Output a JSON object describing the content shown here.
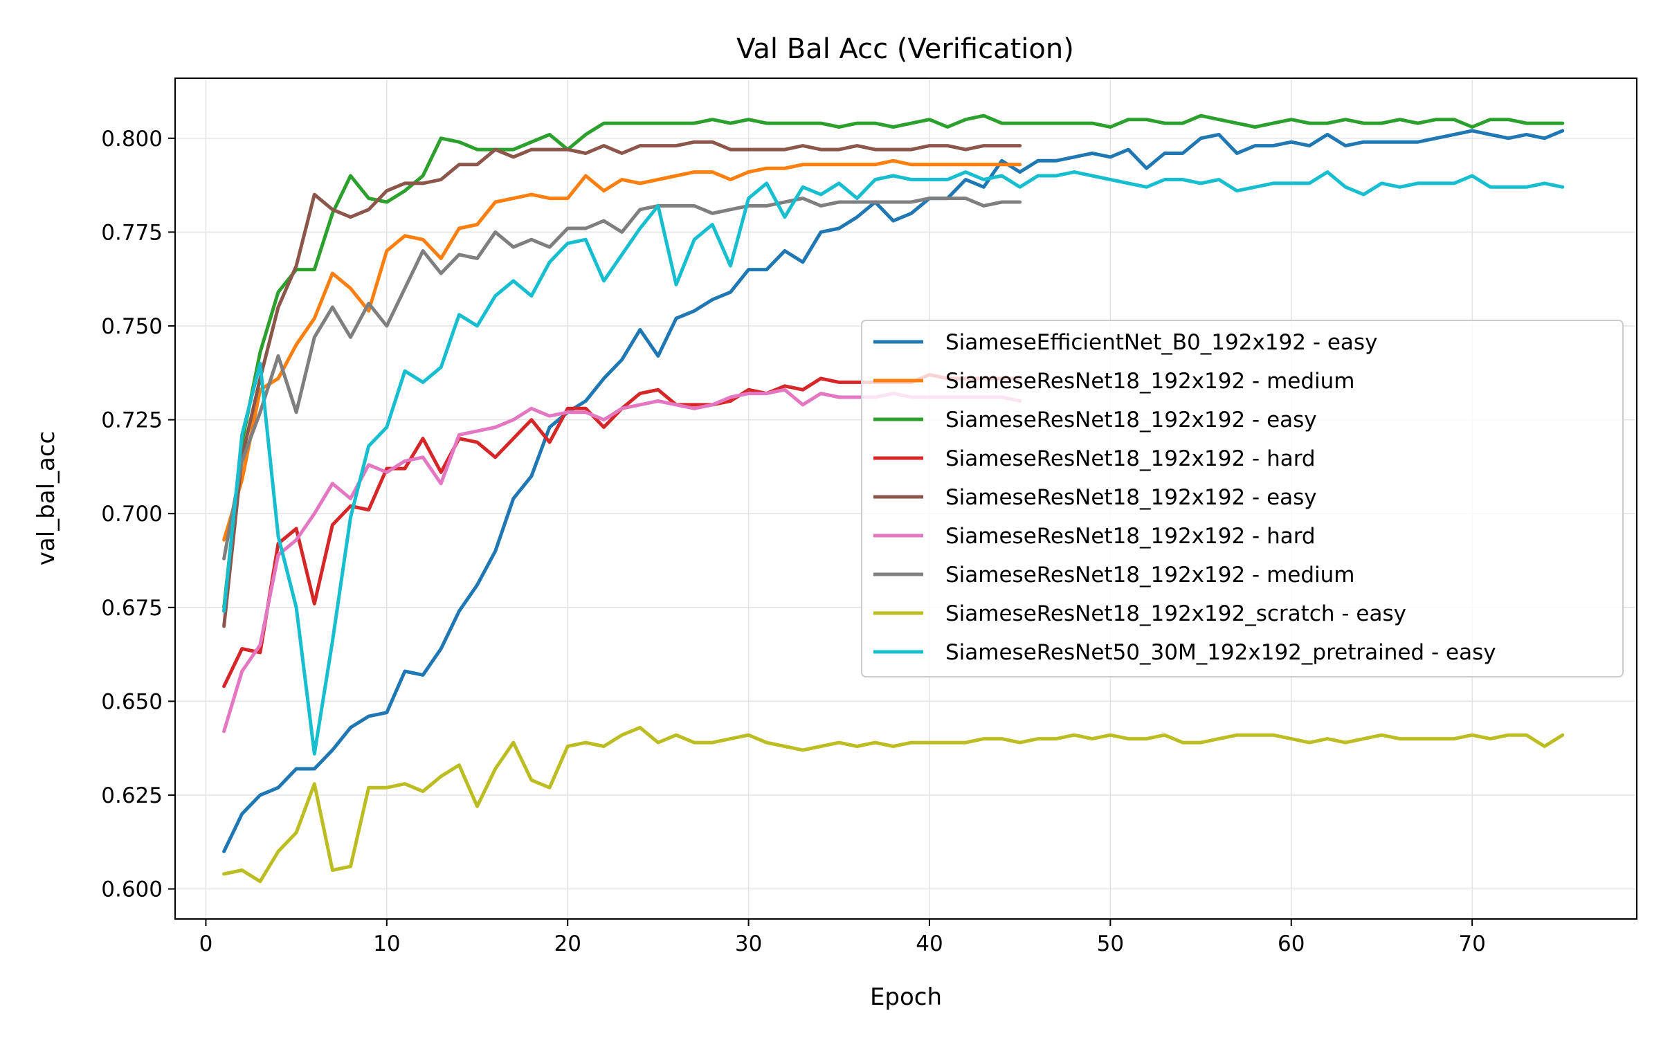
{
  "chart_data": {
    "type": "line",
    "title": "Val Bal Acc (Verification)",
    "xlabel": "Epoch",
    "ylabel": "val_bal_acc",
    "xlim": [
      -1.7,
      79.1
    ],
    "ylim": [
      0.592,
      0.816
    ],
    "xticks": [
      0,
      10,
      20,
      30,
      40,
      50,
      60,
      70
    ],
    "yticks": [
      0.6,
      0.625,
      0.65,
      0.675,
      0.7,
      0.725,
      0.75,
      0.775,
      0.8
    ],
    "ytick_labels": [
      "0.600",
      "0.625",
      "0.650",
      "0.675",
      "0.700",
      "0.725",
      "0.750",
      "0.775",
      "0.800"
    ],
    "grid": true,
    "legend_position": "center-right",
    "series": [
      {
        "name": "SiameseEfficientNet_B0_192x192 - easy",
        "color": "#1f77b4",
        "x_start": 1,
        "values": [
          0.61,
          0.62,
          0.625,
          0.627,
          0.632,
          0.632,
          0.637,
          0.643,
          0.646,
          0.647,
          0.658,
          0.657,
          0.664,
          0.674,
          0.681,
          0.69,
          0.704,
          0.71,
          0.723,
          0.727,
          0.73,
          0.736,
          0.741,
          0.749,
          0.742,
          0.752,
          0.754,
          0.757,
          0.759,
          0.765,
          0.765,
          0.77,
          0.767,
          0.775,
          0.776,
          0.779,
          0.783,
          0.778,
          0.78,
          0.784,
          0.784,
          0.789,
          0.787,
          0.794,
          0.791,
          0.794,
          0.794,
          0.795,
          0.796,
          0.795,
          0.797,
          0.792,
          0.796,
          0.796,
          0.8,
          0.801,
          0.796,
          0.798,
          0.798,
          0.799,
          0.798,
          0.801,
          0.798,
          0.799,
          0.799,
          0.799,
          0.799,
          0.8,
          0.801,
          0.802,
          0.801,
          0.8,
          0.801,
          0.8,
          0.802
        ]
      },
      {
        "name": "SiameseResNet18_192x192 - medium",
        "color": "#ff7f0e",
        "x_start": 1,
        "values": [
          0.693,
          0.709,
          0.733,
          0.736,
          0.745,
          0.752,
          0.764,
          0.76,
          0.754,
          0.77,
          0.774,
          0.773,
          0.768,
          0.776,
          0.777,
          0.783,
          0.784,
          0.785,
          0.784,
          0.784,
          0.79,
          0.786,
          0.789,
          0.788,
          0.789,
          0.79,
          0.791,
          0.791,
          0.789,
          0.791,
          0.792,
          0.792,
          0.793,
          0.793,
          0.793,
          0.793,
          0.793,
          0.794,
          0.793,
          0.793,
          0.793,
          0.793,
          0.793,
          0.793,
          0.793
        ]
      },
      {
        "name": "SiameseResNet18_192x192 - easy",
        "color": "#2ca02c",
        "x_start": 1,
        "values": [
          0.675,
          0.719,
          0.743,
          0.759,
          0.765,
          0.765,
          0.78,
          0.79,
          0.784,
          0.783,
          0.786,
          0.79,
          0.8,
          0.799,
          0.797,
          0.797,
          0.797,
          0.799,
          0.801,
          0.797,
          0.801,
          0.804,
          0.804,
          0.804,
          0.804,
          0.804,
          0.804,
          0.805,
          0.804,
          0.805,
          0.804,
          0.804,
          0.804,
          0.804,
          0.803,
          0.804,
          0.804,
          0.803,
          0.804,
          0.805,
          0.803,
          0.805,
          0.806,
          0.804,
          0.804,
          0.804,
          0.804,
          0.804,
          0.804,
          0.803,
          0.805,
          0.805,
          0.804,
          0.804,
          0.806,
          0.805,
          0.804,
          0.803,
          0.804,
          0.805,
          0.804,
          0.804,
          0.805,
          0.804,
          0.804,
          0.805,
          0.804,
          0.805,
          0.805,
          0.803,
          0.805,
          0.805,
          0.804,
          0.804,
          0.804
        ]
      },
      {
        "name": "SiameseResNet18_192x192 - hard",
        "color": "#d62728",
        "x_start": 1,
        "values": [
          0.654,
          0.664,
          0.663,
          0.692,
          0.696,
          0.676,
          0.697,
          0.702,
          0.701,
          0.712,
          0.712,
          0.72,
          0.711,
          0.72,
          0.719,
          0.715,
          0.72,
          0.725,
          0.719,
          0.728,
          0.728,
          0.723,
          0.728,
          0.732,
          0.733,
          0.729,
          0.729,
          0.729,
          0.73,
          0.733,
          0.732,
          0.734,
          0.733,
          0.736,
          0.735,
          0.735,
          0.735,
          0.735,
          0.735,
          0.737,
          0.736,
          0.736,
          0.736,
          0.736,
          0.736
        ]
      },
      {
        "name": "SiameseResNet18_192x192 - easy",
        "color": "#8c564b",
        "x_start": 1,
        "values": [
          0.67,
          0.715,
          0.736,
          0.755,
          0.766,
          0.785,
          0.781,
          0.779,
          0.781,
          0.786,
          0.788,
          0.788,
          0.789,
          0.793,
          0.793,
          0.797,
          0.795,
          0.797,
          0.797,
          0.797,
          0.796,
          0.798,
          0.796,
          0.798,
          0.798,
          0.798,
          0.799,
          0.799,
          0.797,
          0.797,
          0.797,
          0.797,
          0.798,
          0.797,
          0.797,
          0.798,
          0.797,
          0.797,
          0.797,
          0.798,
          0.798,
          0.797,
          0.798,
          0.798,
          0.798
        ]
      },
      {
        "name": "SiameseResNet18_192x192 - hard",
        "color": "#e377c2",
        "x_start": 1,
        "values": [
          0.642,
          0.658,
          0.665,
          0.689,
          0.693,
          0.7,
          0.708,
          0.704,
          0.713,
          0.711,
          0.714,
          0.715,
          0.708,
          0.721,
          0.722,
          0.723,
          0.725,
          0.728,
          0.726,
          0.727,
          0.727,
          0.725,
          0.728,
          0.729,
          0.73,
          0.729,
          0.728,
          0.729,
          0.731,
          0.732,
          0.732,
          0.733,
          0.729,
          0.732,
          0.731,
          0.731,
          0.731,
          0.732,
          0.731,
          0.731,
          0.731,
          0.731,
          0.731,
          0.731,
          0.73
        ]
      },
      {
        "name": "SiameseResNet18_192x192 - medium",
        "color": "#7f7f7f",
        "x_start": 1,
        "values": [
          0.688,
          0.714,
          0.727,
          0.742,
          0.727,
          0.747,
          0.755,
          0.747,
          0.756,
          0.75,
          0.76,
          0.77,
          0.764,
          0.769,
          0.768,
          0.775,
          0.771,
          0.773,
          0.771,
          0.776,
          0.776,
          0.778,
          0.775,
          0.781,
          0.782,
          0.782,
          0.782,
          0.78,
          0.781,
          0.782,
          0.782,
          0.783,
          0.784,
          0.782,
          0.783,
          0.783,
          0.783,
          0.783,
          0.783,
          0.784,
          0.784,
          0.784,
          0.782,
          0.783,
          0.783
        ]
      },
      {
        "name": "SiameseResNet18_192x192_scratch - easy",
        "color": "#bcbd22",
        "x_start": 1,
        "values": [
          0.604,
          0.605,
          0.602,
          0.61,
          0.615,
          0.628,
          0.605,
          0.606,
          0.627,
          0.627,
          0.628,
          0.626,
          0.63,
          0.633,
          0.622,
          0.632,
          0.639,
          0.629,
          0.627,
          0.638,
          0.639,
          0.638,
          0.641,
          0.643,
          0.639,
          0.641,
          0.639,
          0.639,
          0.64,
          0.641,
          0.639,
          0.638,
          0.637,
          0.638,
          0.639,
          0.638,
          0.639,
          0.638,
          0.639,
          0.639,
          0.639,
          0.639,
          0.64,
          0.64,
          0.639,
          0.64,
          0.64,
          0.641,
          0.64,
          0.641,
          0.64,
          0.64,
          0.641,
          0.639,
          0.639,
          0.64,
          0.641,
          0.641,
          0.641,
          0.64,
          0.639,
          0.64,
          0.639,
          0.64,
          0.641,
          0.64,
          0.64,
          0.64,
          0.64,
          0.641,
          0.64,
          0.641,
          0.641,
          0.638,
          0.641
        ]
      },
      {
        "name": "SiameseResNet50_30M_192x192_pretrained - easy",
        "color": "#17becf",
        "x_start": 1,
        "values": [
          0.674,
          0.721,
          0.74,
          0.694,
          0.675,
          0.636,
          0.666,
          0.699,
          0.718,
          0.723,
          0.738,
          0.735,
          0.739,
          0.753,
          0.75,
          0.758,
          0.762,
          0.758,
          0.767,
          0.772,
          0.773,
          0.762,
          0.769,
          0.776,
          0.782,
          0.761,
          0.773,
          0.777,
          0.766,
          0.784,
          0.788,
          0.779,
          0.787,
          0.785,
          0.788,
          0.784,
          0.789,
          0.79,
          0.789,
          0.789,
          0.789,
          0.791,
          0.789,
          0.79,
          0.787,
          0.79,
          0.79,
          0.791,
          0.79,
          0.789,
          0.788,
          0.787,
          0.789,
          0.789,
          0.788,
          0.789,
          0.786,
          0.787,
          0.788,
          0.788,
          0.788,
          0.791,
          0.787,
          0.785,
          0.788,
          0.787,
          0.788,
          0.788,
          0.788,
          0.79,
          0.787,
          0.787,
          0.787,
          0.788,
          0.787
        ]
      }
    ]
  }
}
